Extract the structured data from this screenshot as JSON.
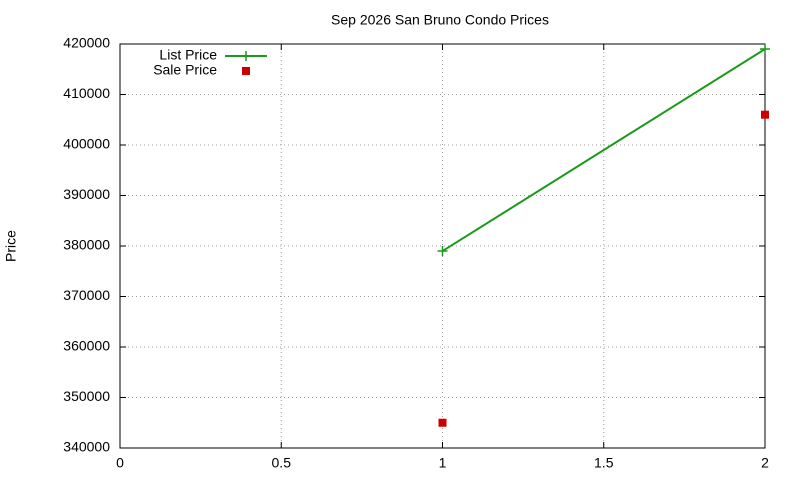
{
  "chart_data": {
    "type": "line",
    "title": "Sep 2026 San Bruno Condo Prices",
    "ylabel": "Price",
    "x": [
      1,
      2
    ],
    "series": [
      {
        "name": "List Price",
        "color": "#1a9a1a",
        "style": "linespoints",
        "values": [
          379000,
          419000
        ]
      },
      {
        "name": "Sale Price",
        "color": "#cc0000",
        "style": "points",
        "values": [
          345000,
          406000
        ]
      }
    ],
    "xlim": [
      0,
      2
    ],
    "xticks": [
      0,
      0.5,
      1,
      1.5,
      2
    ],
    "ylim": [
      340000,
      420000
    ],
    "yticks": [
      340000,
      350000,
      360000,
      370000,
      380000,
      390000,
      400000,
      410000,
      420000
    ],
    "grid": true,
    "legend": "top-left"
  }
}
